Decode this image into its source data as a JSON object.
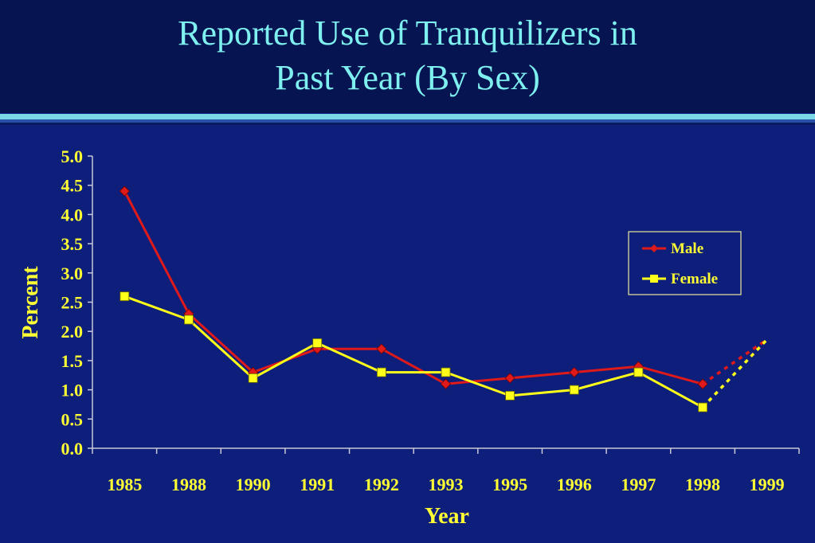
{
  "slide": {
    "title_line1": "Reported Use of Tranquilizers in",
    "title_line2": "Past Year (By Sex)"
  },
  "colors": {
    "background": "#0d1f7a",
    "title": "#7ff0f0",
    "text": "#ffff33",
    "male": "#e01a1a",
    "female": "#ffff1a"
  },
  "chart_data": {
    "type": "line",
    "xlabel": "Year",
    "ylabel": "Percent",
    "categories": [
      "1985",
      "1988",
      "1990",
      "1991",
      "1992",
      "1993",
      "1995",
      "1996",
      "1997",
      "1998",
      "1999"
    ],
    "y_ticks": [
      "0.0",
      "0.5",
      "1.0",
      "1.5",
      "2.0",
      "2.5",
      "3.0",
      "3.5",
      "4.0",
      "4.5",
      "5.0"
    ],
    "ylim": [
      0,
      5
    ],
    "grid": false,
    "legend_position": "top-right",
    "series": [
      {
        "name": "Male",
        "marker": "diamond",
        "values": [
          4.4,
          2.3,
          1.3,
          1.7,
          1.7,
          1.1,
          1.2,
          1.3,
          1.4,
          1.1,
          1.86
        ],
        "dotted_from_index": 9
      },
      {
        "name": "Female",
        "marker": "square",
        "values": [
          2.6,
          2.2,
          1.2,
          1.8,
          1.3,
          1.3,
          0.9,
          1.0,
          1.3,
          0.7,
          1.86
        ],
        "dotted_from_index": 9
      }
    ]
  }
}
